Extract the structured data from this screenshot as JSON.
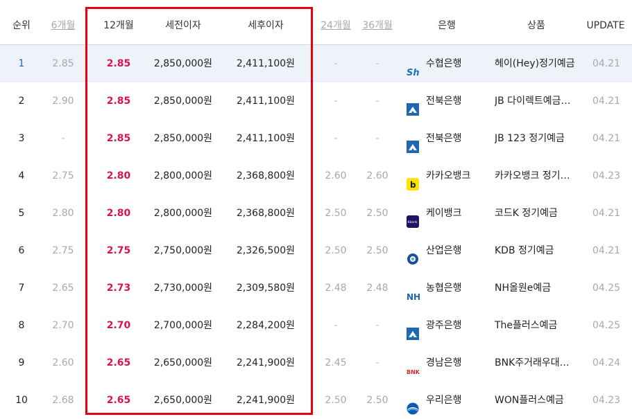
{
  "header": {
    "rank": "순위",
    "m6": "6개월",
    "m12": "12개월",
    "pretax": "세전이자",
    "posttax": "세후이자",
    "m24": "24개월",
    "m36": "36개월",
    "bank": "은행",
    "product": "상품",
    "update": "UPDATE"
  },
  "rows": [
    {
      "rank": "1",
      "m6": "2.85",
      "m12": "2.85",
      "pretax": "2,850,000원",
      "posttax": "2,411,100원",
      "m24": "-",
      "m36": "-",
      "bank": "수협은행",
      "bank_icon": "suhyup-logo-icon",
      "product": "헤이(Hey)정기예금",
      "update": "04.21"
    },
    {
      "rank": "2",
      "m6": "2.90",
      "m12": "2.85",
      "pretax": "2,850,000원",
      "posttax": "2,411,100원",
      "m24": "-",
      "m36": "-",
      "bank": "전북은행",
      "bank_icon": "jeonbuk-logo-icon",
      "product": "JB 다이렉트예금…",
      "update": "04.21"
    },
    {
      "rank": "3",
      "m6": "-",
      "m12": "2.85",
      "pretax": "2,850,000원",
      "posttax": "2,411,100원",
      "m24": "-",
      "m36": "-",
      "bank": "전북은행",
      "bank_icon": "jeonbuk-logo-icon",
      "product": "JB 123 정기예금",
      "update": "04.21"
    },
    {
      "rank": "4",
      "m6": "2.75",
      "m12": "2.80",
      "pretax": "2,800,000원",
      "posttax": "2,368,800원",
      "m24": "2.60",
      "m36": "2.60",
      "bank": "카카오뱅크",
      "bank_icon": "kakaobank-logo-icon",
      "product": "카카오뱅크 정기…",
      "update": "04.23"
    },
    {
      "rank": "5",
      "m6": "2.80",
      "m12": "2.80",
      "pretax": "2,800,000원",
      "posttax": "2,368,800원",
      "m24": "2.50",
      "m36": "2.50",
      "bank": "케이뱅크",
      "bank_icon": "kbank-logo-icon",
      "product": "코드K 정기예금",
      "update": "04.21"
    },
    {
      "rank": "6",
      "m6": "2.75",
      "m12": "2.75",
      "pretax": "2,750,000원",
      "posttax": "2,326,500원",
      "m24": "2.50",
      "m36": "2.50",
      "bank": "산업은행",
      "bank_icon": "kdb-logo-icon",
      "product": "KDB 정기예금",
      "update": "04.21"
    },
    {
      "rank": "7",
      "m6": "2.65",
      "m12": "2.73",
      "pretax": "2,730,000원",
      "posttax": "2,309,580원",
      "m24": "2.48",
      "m36": "2.48",
      "bank": "농협은행",
      "bank_icon": "nh-logo-icon",
      "product": "NH올원e예금",
      "update": "04.25"
    },
    {
      "rank": "8",
      "m6": "2.70",
      "m12": "2.70",
      "pretax": "2,700,000원",
      "posttax": "2,284,200원",
      "m24": "-",
      "m36": "-",
      "bank": "광주은행",
      "bank_icon": "kwangju-logo-icon",
      "product": "The플러스예금",
      "update": "04.25"
    },
    {
      "rank": "9",
      "m6": "2.60",
      "m12": "2.65",
      "pretax": "2,650,000원",
      "posttax": "2,241,900원",
      "m24": "2.45",
      "m36": "-",
      "bank": "경남은행",
      "bank_icon": "bnk-logo-icon",
      "product": "BNK주거래우대…",
      "update": "04.24"
    },
    {
      "rank": "10",
      "m6": "2.68",
      "m12": "2.65",
      "pretax": "2,650,000원",
      "posttax": "2,241,900원",
      "m24": "2.50",
      "m36": "2.50",
      "bank": "우리은행",
      "bank_icon": "woori-logo-icon",
      "product": "WON플러스예금",
      "update": "04.23"
    }
  ],
  "logo_text": {
    "suhyup": "Sh",
    "kakaobank": "b",
    "kbank": "Kbank",
    "nh": "NH",
    "bnk": "BNK"
  },
  "colors": {
    "rate_highlight": "#d8154a",
    "highlight_box": "#e8000f",
    "first_row_bg": "#eef3f9",
    "muted": "#a5a9ae"
  }
}
